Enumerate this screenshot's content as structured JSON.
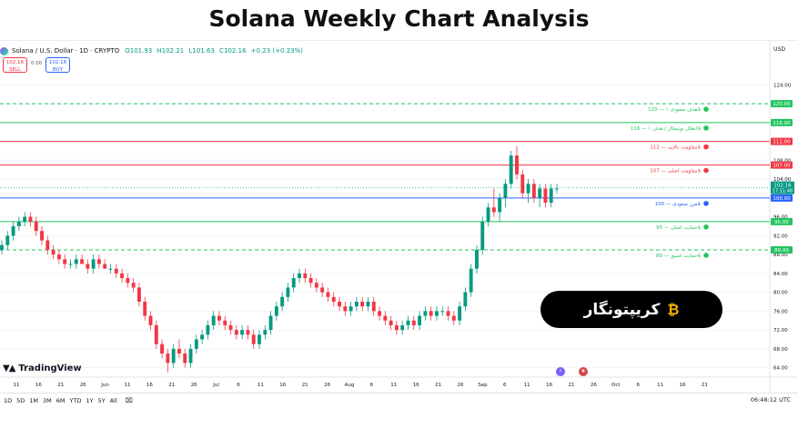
{
  "page_title": "Solana Weekly Chart Analysis",
  "header": {
    "symbol": "Solana / U.S. Dollar · 1D · CRYPTO",
    "open": "O101.93",
    "high": "H102.21",
    "low": "L101.63",
    "close": "C102.16",
    "change": "+0.23 (+0.23%)",
    "currency": "USD"
  },
  "trade": {
    "sell_price": "102.16",
    "sell_label": "SELL",
    "spread": "0.00",
    "buy_price": "102.16",
    "buy_label": "BUY"
  },
  "brand": "TradingView",
  "badge_text": "کریپتونگار",
  "timeframes": [
    "1D",
    "5D",
    "1M",
    "3M",
    "6M",
    "YTD",
    "1Y",
    "5Y",
    "All"
  ],
  "clock": "06:48:12 UTC",
  "colors": {
    "up": "#089981",
    "down": "#f23645",
    "resistance": "#f23645",
    "support": "#089981",
    "target": "#22c55e",
    "current": "#2962ff"
  },
  "chart_data": {
    "type": "candlestick",
    "ylim": [
      62,
      126
    ],
    "y_ticks": [
      64,
      68,
      72,
      76,
      80,
      84,
      88,
      92,
      96,
      100,
      104,
      108,
      112,
      116,
      120,
      124
    ],
    "current_price": 102.16,
    "current_countdown": "17:11:48",
    "x_ticks": [
      "11",
      "16",
      "21",
      "26",
      "Jun",
      "11",
      "16",
      "21",
      "26",
      "Jul",
      "6",
      "11",
      "16",
      "21",
      "26",
      "Aug",
      "6",
      "11",
      "16",
      "21",
      "26",
      "Sep",
      "6",
      "11",
      "16",
      "21",
      "26",
      "Oct",
      "6",
      "11",
      "16",
      "21"
    ],
    "levels": [
      {
        "price": 120,
        "label": "هدف صعودی ۱ — 120$",
        "style": "dashed",
        "color": "#22c55e",
        "tag": "120.00"
      },
      {
        "price": 116,
        "label": "ابطال نوتیفکار / هدف ۱ — 116$",
        "style": "solid",
        "color": "#22c55e",
        "tag": "116.00"
      },
      {
        "price": 112,
        "label": "مقاومت بالایی — 112$",
        "style": "solid",
        "color": "#f23645",
        "tag": "112.00"
      },
      {
        "price": 107,
        "label": "مقاومت اصلی — 107$",
        "style": "solid",
        "color": "#f23645",
        "tag": "107.00"
      },
      {
        "price": 100,
        "label": "مرز صعودی — 100$",
        "style": "solid",
        "color": "#2962ff",
        "tag": "100.00"
      },
      {
        "price": 95,
        "label": "حمایت اصلی — 95$",
        "style": "solid",
        "color": "#22c55e",
        "tag": "95.00"
      },
      {
        "price": 89,
        "label": "حمایت عمیق — 89$",
        "style": "dashed",
        "color": "#22c55e",
        "tag": "89.00"
      }
    ],
    "candles": [
      [
        89,
        91,
        88,
        90
      ],
      [
        90,
        93,
        89,
        92
      ],
      [
        92,
        95,
        91,
        94
      ],
      [
        94,
        96,
        93,
        95
      ],
      [
        95,
        97,
        94,
        96
      ],
      [
        96,
        97,
        94,
        95
      ],
      [
        95,
        96,
        92,
        93
      ],
      [
        93,
        94,
        90,
        91
      ],
      [
        91,
        92,
        88,
        89
      ],
      [
        89,
        90,
        87,
        88
      ],
      [
        88,
        89,
        86,
        87
      ],
      [
        87,
        88,
        85,
        86
      ],
      [
        86,
        87,
        85,
        86
      ],
      [
        86,
        88,
        85,
        87
      ],
      [
        87,
        88,
        86,
        86
      ],
      [
        86,
        87,
        84,
        85
      ],
      [
        85,
        88,
        84,
        87
      ],
      [
        87,
        88,
        85,
        86
      ],
      [
        86,
        87,
        85,
        85
      ],
      [
        85,
        86,
        84,
        85
      ],
      [
        85,
        86,
        83,
        84
      ],
      [
        84,
        85,
        82,
        83
      ],
      [
        83,
        84,
        81,
        82
      ],
      [
        82,
        83,
        80,
        81
      ],
      [
        81,
        82,
        77,
        78
      ],
      [
        78,
        79,
        74,
        75
      ],
      [
        75,
        76,
        72,
        73
      ],
      [
        73,
        74,
        68,
        69
      ],
      [
        69,
        70,
        66,
        67
      ],
      [
        67,
        68,
        63,
        65
      ],
      [
        65,
        69,
        64,
        68
      ],
      [
        68,
        70,
        66,
        67
      ],
      [
        67,
        68,
        64,
        65
      ],
      [
        65,
        69,
        64,
        68
      ],
      [
        68,
        71,
        67,
        70
      ],
      [
        70,
        72,
        69,
        71
      ],
      [
        71,
        74,
        70,
        73
      ],
      [
        73,
        76,
        72,
        75
      ],
      [
        75,
        76,
        73,
        74
      ],
      [
        74,
        75,
        72,
        73
      ],
      [
        73,
        74,
        71,
        72
      ],
      [
        72,
        73,
        70,
        71
      ],
      [
        71,
        73,
        70,
        72
      ],
      [
        72,
        73,
        70,
        71
      ],
      [
        71,
        72,
        68,
        69
      ],
      [
        69,
        72,
        68,
        71
      ],
      [
        71,
        73,
        70,
        72
      ],
      [
        72,
        76,
        71,
        75
      ],
      [
        75,
        78,
        74,
        77
      ],
      [
        77,
        80,
        76,
        79
      ],
      [
        79,
        82,
        78,
        81
      ],
      [
        81,
        84,
        80,
        83
      ],
      [
        83,
        85,
        82,
        84
      ],
      [
        84,
        85,
        82,
        83
      ],
      [
        83,
        84,
        81,
        82
      ],
      [
        82,
        83,
        80,
        81
      ],
      [
        81,
        82,
        79,
        80
      ],
      [
        80,
        81,
        78,
        79
      ],
      [
        79,
        80,
        77,
        78
      ],
      [
        78,
        79,
        76,
        77
      ],
      [
        77,
        78,
        75,
        76
      ],
      [
        76,
        78,
        75,
        77
      ],
      [
        77,
        79,
        76,
        78
      ],
      [
        78,
        79,
        76,
        77
      ],
      [
        77,
        79,
        76,
        78
      ],
      [
        78,
        79,
        75,
        76
      ],
      [
        76,
        77,
        74,
        75
      ],
      [
        75,
        76,
        73,
        74
      ],
      [
        74,
        75,
        72,
        73
      ],
      [
        73,
        74,
        71,
        72
      ],
      [
        72,
        74,
        71,
        73
      ],
      [
        73,
        75,
        72,
        74
      ],
      [
        74,
        75,
        72,
        73
      ],
      [
        73,
        76,
        72,
        75
      ],
      [
        75,
        77,
        74,
        76
      ],
      [
        76,
        77,
        74,
        75
      ],
      [
        75,
        77,
        74,
        76
      ],
      [
        76,
        77,
        75,
        76
      ],
      [
        76,
        77,
        74,
        75
      ],
      [
        75,
        76,
        73,
        74
      ],
      [
        74,
        78,
        73,
        77
      ],
      [
        77,
        81,
        76,
        80
      ],
      [
        80,
        86,
        79,
        85
      ],
      [
        85,
        90,
        84,
        89
      ],
      [
        89,
        96,
        88,
        95
      ],
      [
        95,
        99,
        94,
        98
      ],
      [
        98,
        102,
        96,
        97
      ],
      [
        97,
        101,
        95,
        100
      ],
      [
        100,
        104,
        98,
        103
      ],
      [
        103,
        110,
        102,
        109
      ],
      [
        109,
        111,
        104,
        105
      ],
      [
        105,
        106,
        100,
        101
      ],
      [
        101,
        104,
        99,
        103
      ],
      [
        103,
        104,
        99,
        100
      ],
      [
        100,
        103,
        98,
        102
      ],
      [
        102,
        103,
        98,
        99
      ],
      [
        99,
        103,
        98,
        102
      ],
      [
        102,
        103,
        101,
        102
      ]
    ]
  }
}
